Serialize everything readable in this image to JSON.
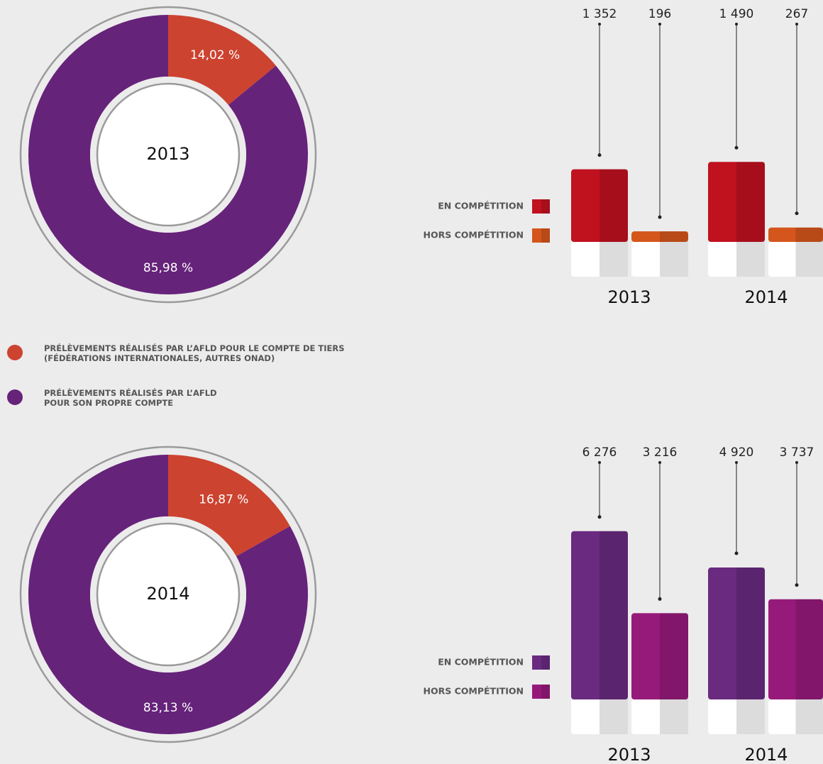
{
  "chart_data": [
    {
      "type": "donut",
      "title": "2013",
      "categories": [
        "PRÉLÈVEMENTS RÉALISÉS PAR L’AFLD POUR LE COMPTE DE TIERS\n(FÉDÉRATIONS INTERNATIONALES, AUTRES ONAD)",
        "PRÉLÈVEMENTS RÉALISÉS PAR L’AFLD\nPOUR SON PROPRE COMPTE"
      ],
      "values": [
        14.02,
        85.98
      ],
      "value_labels": [
        "14,02 %",
        "85,98 %"
      ],
      "colors": [
        "#cc4330",
        "#66237a"
      ]
    },
    {
      "type": "donut",
      "title": "2014",
      "values": [
        16.87,
        83.13
      ],
      "value_labels": [
        "16,87 %",
        "83,13 %"
      ],
      "colors": [
        "#cc4330",
        "#66237a"
      ]
    },
    {
      "type": "bar",
      "categories": [
        "2013",
        "2014"
      ],
      "series": [
        {
          "name": "EN COMPÉTITION",
          "color": "#c0111f",
          "values": [
            1352,
            1490
          ],
          "value_labels": [
            "1 352",
            "1 490"
          ]
        },
        {
          "name": "HORS COMPÉTITION",
          "color": "#d4561c",
          "values": [
            196,
            267
          ],
          "value_labels": [
            "196",
            "267"
          ]
        }
      ]
    },
    {
      "type": "bar",
      "categories": [
        "2013",
        "2014"
      ],
      "series": [
        {
          "name": "EN COMPÉTITION",
          "color": "#692a80",
          "values": [
            6276,
            4920
          ],
          "value_labels": [
            "6 276",
            "4 920"
          ]
        },
        {
          "name": "HORS COMPÉTITION",
          "color": "#961a7a",
          "values": [
            3216,
            3737
          ],
          "value_labels": [
            "3 216",
            "3 737"
          ]
        }
      ]
    }
  ]
}
